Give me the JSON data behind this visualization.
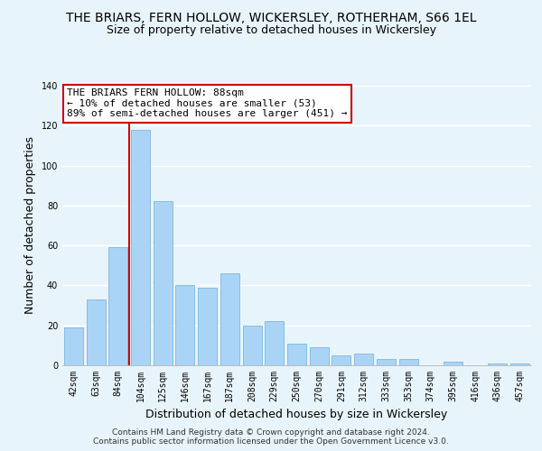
{
  "title": "THE BRIARS, FERN HOLLOW, WICKERSLEY, ROTHERHAM, S66 1EL",
  "subtitle": "Size of property relative to detached houses in Wickersley",
  "xlabel": "Distribution of detached houses by size in Wickersley",
  "ylabel": "Number of detached properties",
  "categories": [
    "42sqm",
    "63sqm",
    "84sqm",
    "104sqm",
    "125sqm",
    "146sqm",
    "167sqm",
    "187sqm",
    "208sqm",
    "229sqm",
    "250sqm",
    "270sqm",
    "291sqm",
    "312sqm",
    "333sqm",
    "353sqm",
    "374sqm",
    "395sqm",
    "416sqm",
    "436sqm",
    "457sqm"
  ],
  "values": [
    19,
    33,
    59,
    118,
    82,
    40,
    39,
    46,
    20,
    22,
    11,
    9,
    5,
    6,
    3,
    3,
    0,
    2,
    0,
    1,
    1
  ],
  "bar_color": "#aad4f5",
  "bar_edge_color": "#6baed6",
  "highlight_line_color": "#cc0000",
  "annotation_text": "THE BRIARS FERN HOLLOW: 88sqm\n← 10% of detached houses are smaller (53)\n89% of semi-detached houses are larger (451) →",
  "ylim": [
    0,
    140
  ],
  "yticks": [
    0,
    20,
    40,
    60,
    80,
    100,
    120,
    140
  ],
  "footer1": "Contains HM Land Registry data © Crown copyright and database right 2024.",
  "footer2": "Contains public sector information licensed under the Open Government Licence v3.0.",
  "background_color": "#e8f4fc",
  "grid_color": "#ffffff",
  "title_fontsize": 10,
  "subtitle_fontsize": 9,
  "axis_label_fontsize": 9,
  "tick_fontsize": 7,
  "footer_fontsize": 6.5
}
